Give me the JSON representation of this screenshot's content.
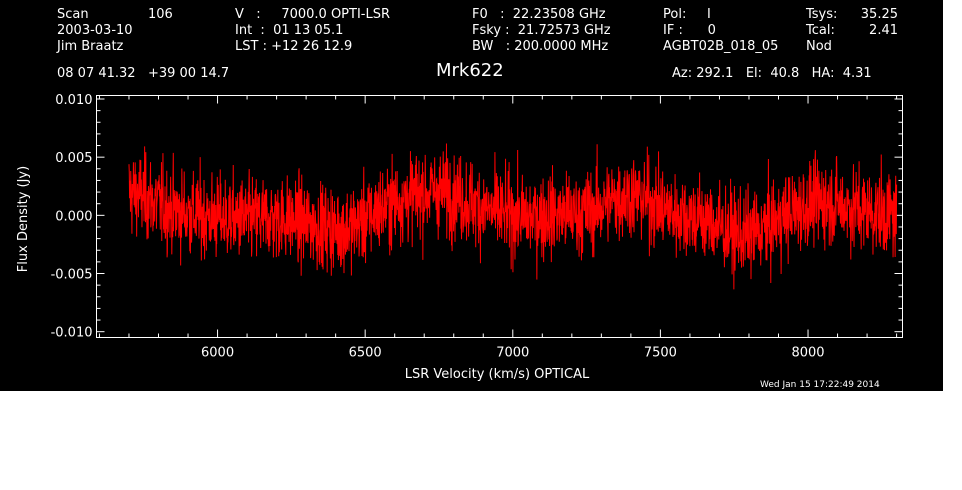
{
  "header": {
    "col1": {
      "scan_label": "Scan",
      "scan_value": "106",
      "date": "2003-03-10",
      "observer": "Jim Braatz"
    },
    "col2": {
      "line1": "V   :     7000.0 OPTI-LSR",
      "line2": "Int  :  01 13 05.1",
      "line3": "LST : +12 26 12.9"
    },
    "col3": {
      "line1": "F0   :  22.23508 GHz",
      "line2": "Fsky :  21.72573 GHz",
      "line3": "BW   : 200.0000 MHz"
    },
    "col4": {
      "line1": "Pol:     I",
      "line2": "IF :      0",
      "line3": "AGBT02B_018_05"
    },
    "col5": {
      "tsys_label": "Tsys:",
      "tsys_value": "35.25",
      "tcal_label": "Tcal:",
      "tcal_value": "2.41",
      "mode": "Nod"
    },
    "coords": "08 07 41.32   +39 00 14.7",
    "pointing": "Az: 292.1   El:  40.8   HA:  4.31"
  },
  "timestamp": "Wed Jan 15 17:22:49 2014",
  "colors": {
    "background": "#000000",
    "axes": "#ffffff",
    "series": "#ff0000"
  },
  "chart_data": {
    "type": "line",
    "title": "Mrk622",
    "xlabel": "LSR Velocity (km/s) OPTICAL",
    "ylabel": "Flux Density (Jy)",
    "xlim": [
      5590,
      8320
    ],
    "ylim": [
      -0.0105,
      0.0103
    ],
    "xticks": [
      6000,
      6500,
      7000,
      7500,
      8000
    ],
    "xtick_labels": [
      "6000",
      "6500",
      "7000",
      "7500",
      "8000"
    ],
    "yticks": [
      -0.01,
      -0.005,
      0.0,
      0.005,
      0.01
    ],
    "ytick_labels": [
      "-0.010",
      "-0.005",
      "0.000",
      "0.005",
      "0.010"
    ],
    "grid": false,
    "series": [
      {
        "color": "#ff0000",
        "x_range": [
          5700,
          8300
        ],
        "x": [
          5700,
          5750,
          5800,
          5850,
          5900,
          5950,
          6000,
          6050,
          6100,
          6150,
          6200,
          6250,
          6300,
          6350,
          6400,
          6450,
          6500,
          6550,
          6600,
          6650,
          6700,
          6750,
          6800,
          6850,
          6900,
          6950,
          7000,
          7050,
          7100,
          7150,
          7200,
          7250,
          7300,
          7350,
          7400,
          7450,
          7500,
          7550,
          7600,
          7650,
          7700,
          7750,
          7800,
          7850,
          7900,
          7950,
          8000,
          8050,
          8100,
          8150,
          8200,
          8250,
          8300
        ],
        "y": [
          0.002,
          0.0016,
          0.001,
          0.0004,
          0.0002,
          0.0,
          -0.0002,
          -0.0003,
          -0.0004,
          -0.0003,
          -0.0002,
          -0.0004,
          -0.0007,
          -0.0009,
          -0.0012,
          -0.001,
          -0.0004,
          0.0005,
          0.0012,
          0.0016,
          0.0019,
          0.0021,
          0.0018,
          0.0012,
          0.0006,
          0.0002,
          0.0,
          -0.0002,
          0.0,
          0.0001,
          0.0,
          0.0002,
          0.0008,
          0.0014,
          0.0018,
          0.0014,
          0.0006,
          0.0002,
          0.0,
          -0.0004,
          -0.001,
          -0.0016,
          -0.0017,
          -0.0012,
          -0.0004,
          0.0003,
          0.0008,
          0.0012,
          0.001,
          0.0006,
          0.0004,
          0.0001,
          0.0
        ],
        "noise_rms": 0.0018
      }
    ]
  }
}
